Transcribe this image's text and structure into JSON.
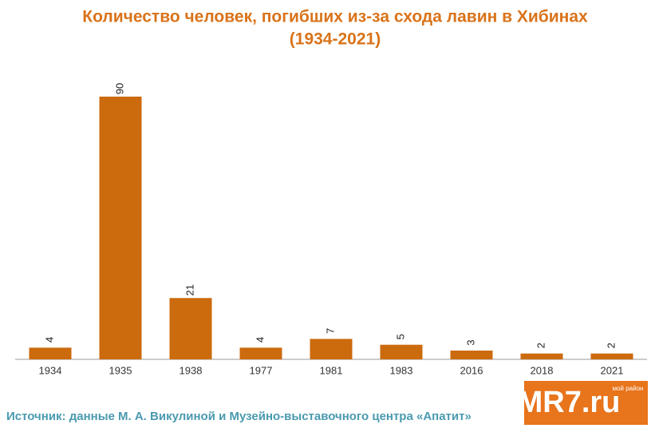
{
  "chart_data": {
    "type": "bar",
    "title": [
      "Количество человек, погибших из-за схода лавин в Хибинах",
      "(1934-2021)"
    ],
    "categories": [
      "1934",
      "1935",
      "1938",
      "1977",
      "1981",
      "1983",
      "2016",
      "2018",
      "2021"
    ],
    "values": [
      4,
      90,
      21,
      4,
      7,
      5,
      3,
      2,
      2
    ],
    "color": "#cc6a0e",
    "source": "Источник: данные М. А. Викулиной и Музейно-выставочного центра «Апатит»",
    "logo": {
      "text": "MR7.ru",
      "tagline": "мой район"
    }
  }
}
